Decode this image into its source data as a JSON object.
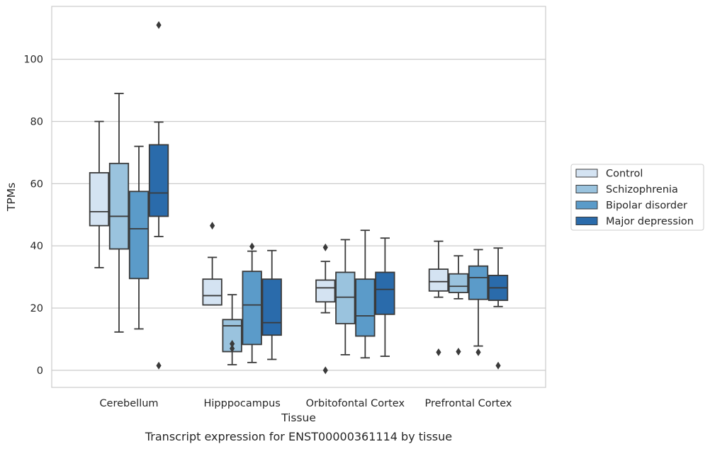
{
  "chart_data": {
    "type": "box",
    "title": "Transcript expression for ENST00000361114 by tissue",
    "xlabel": "Tissue",
    "ylabel": "TPMs",
    "ylim": [
      -5.5,
      117
    ],
    "yticks": [
      0,
      20,
      40,
      60,
      80,
      100
    ],
    "grid": "horizontal",
    "legend_position": "right",
    "categories": [
      "Cerebellum",
      "Hipppocampus",
      "Orbitofontal Cortex",
      "Prefrontal Cortex"
    ],
    "series": [
      {
        "name": "Control",
        "color": "#d4e3f2",
        "boxes": [
          {
            "whislo": 33.0,
            "q1": 46.5,
            "med": 51.0,
            "q3": 63.5,
            "whishi": 80.0,
            "fliers": []
          },
          {
            "whislo": 21.0,
            "q1": 21.0,
            "med": 24.0,
            "q3": 29.3,
            "whishi": 36.3,
            "fliers": [
              46.5
            ]
          },
          {
            "whislo": 18.5,
            "q1": 22.0,
            "med": 26.5,
            "q3": 29.0,
            "whishi": 35.0,
            "fliers": [
              39.5,
              0.0
            ]
          },
          {
            "whislo": 23.5,
            "q1": 25.5,
            "med": 28.5,
            "q3": 32.5,
            "whishi": 41.5,
            "fliers": [
              5.8
            ]
          }
        ]
      },
      {
        "name": "Schizophrenia",
        "color": "#9ac3de",
        "boxes": [
          {
            "whislo": 12.3,
            "q1": 39.0,
            "med": 49.5,
            "q3": 66.5,
            "whishi": 89.0,
            "fliers": []
          },
          {
            "whislo": 1.8,
            "q1": 6.0,
            "med": 14.3,
            "q3": 16.3,
            "whishi": 24.3,
            "fliers": [
              8.5,
              7.0
            ]
          },
          {
            "whislo": 5.0,
            "q1": 15.0,
            "med": 23.5,
            "q3": 31.5,
            "whishi": 42.0,
            "fliers": []
          },
          {
            "whislo": 23.0,
            "q1": 25.0,
            "med": 27.0,
            "q3": 31.0,
            "whishi": 36.8,
            "fliers": [
              6.0
            ]
          }
        ]
      },
      {
        "name": "Bipolar disorder",
        "color": "#5b9bc9",
        "boxes": [
          {
            "whislo": 13.3,
            "q1": 29.5,
            "med": 45.5,
            "q3": 57.5,
            "whishi": 72.0,
            "fliers": []
          },
          {
            "whislo": 2.5,
            "q1": 8.3,
            "med": 21.0,
            "q3": 31.8,
            "whishi": 38.3,
            "fliers": [
              39.8
            ]
          },
          {
            "whislo": 4.0,
            "q1": 11.0,
            "med": 17.5,
            "q3": 29.3,
            "whishi": 45.0,
            "fliers": []
          },
          {
            "whislo": 7.8,
            "q1": 22.8,
            "med": 29.8,
            "q3": 33.5,
            "whishi": 38.8,
            "fliers": [
              5.8
            ]
          }
        ]
      },
      {
        "name": "Major depression",
        "color": "#2a6bab",
        "boxes": [
          {
            "whislo": 43.0,
            "q1": 49.5,
            "med": 57.0,
            "q3": 72.5,
            "whishi": 79.8,
            "fliers": [
              111.0,
              1.5
            ]
          },
          {
            "whislo": 3.5,
            "q1": 11.3,
            "med": 15.3,
            "q3": 29.3,
            "whishi": 38.5,
            "fliers": []
          },
          {
            "whislo": 4.5,
            "q1": 18.0,
            "med": 26.0,
            "q3": 31.5,
            "whishi": 42.5,
            "fliers": []
          },
          {
            "whislo": 20.5,
            "q1": 22.5,
            "med": 26.5,
            "q3": 30.5,
            "whishi": 39.3,
            "fliers": [
              1.5
            ]
          }
        ]
      }
    ]
  }
}
